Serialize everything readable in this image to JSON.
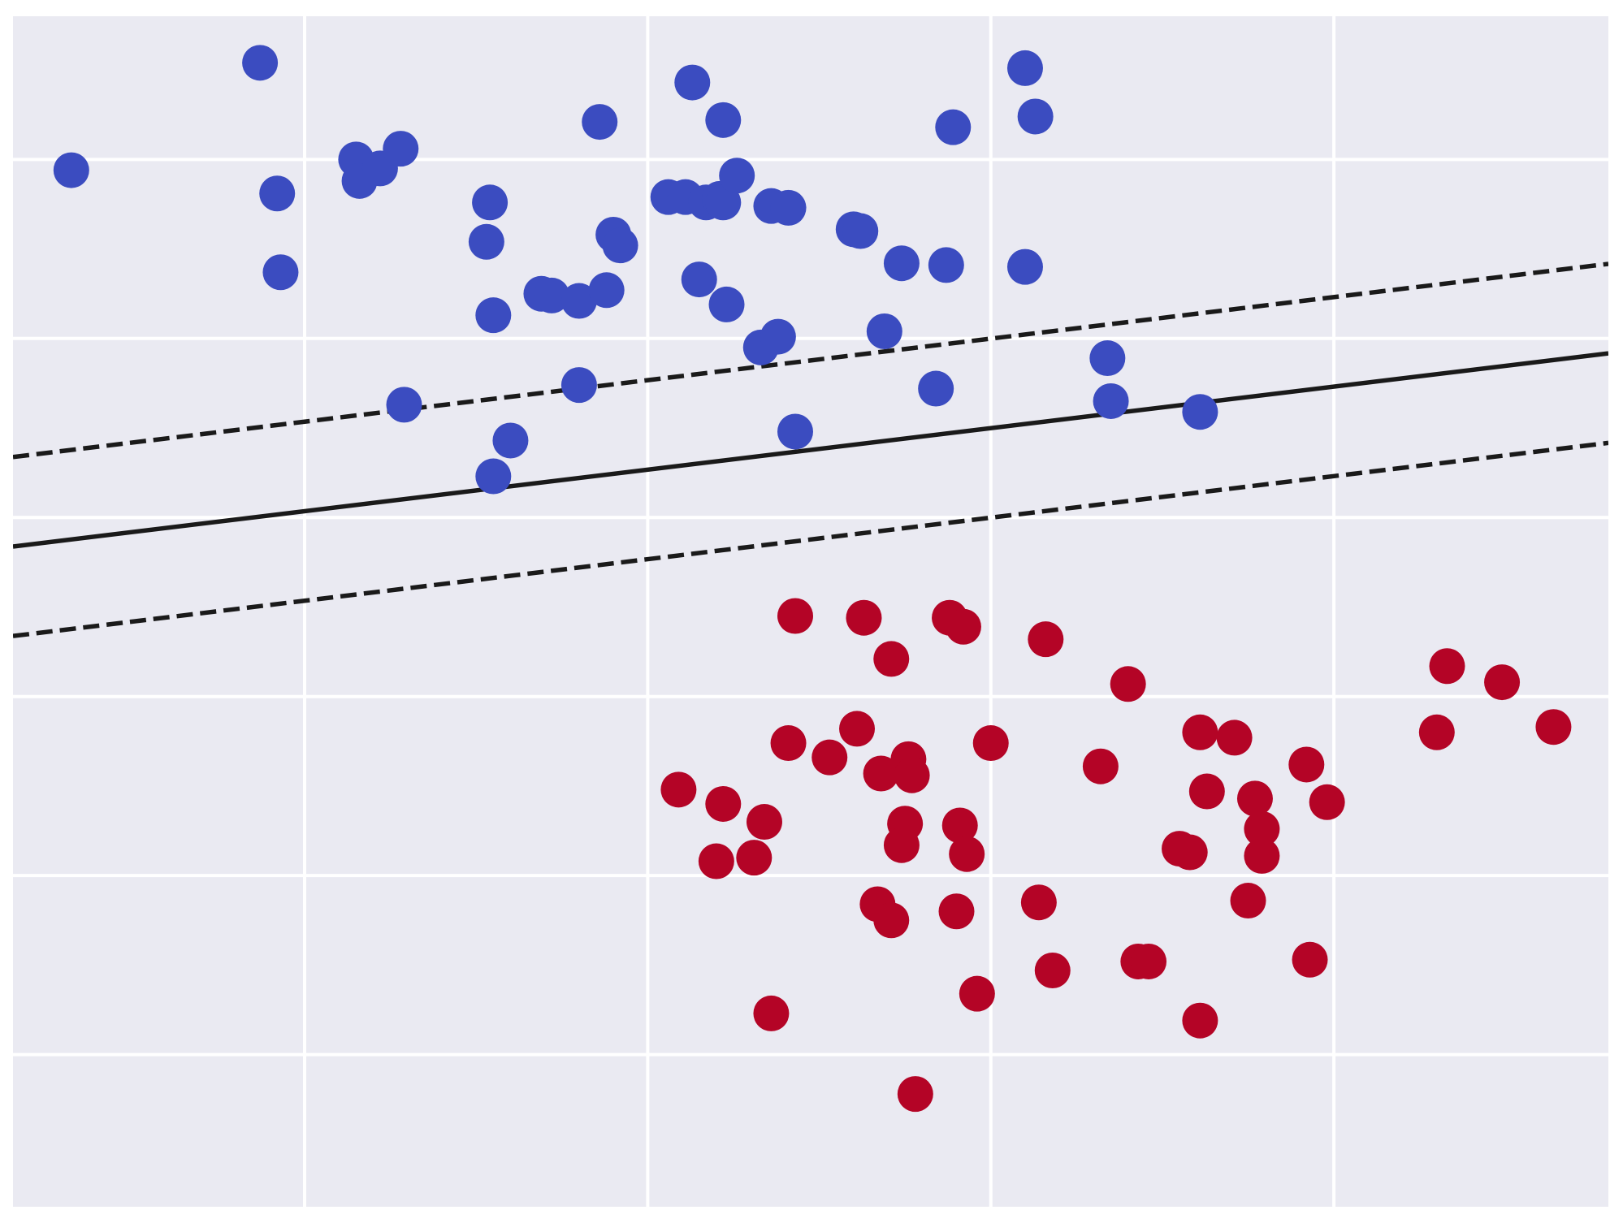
{
  "chart_data": {
    "type": "scatter",
    "title": "",
    "xlabel": "",
    "ylabel": "",
    "xlim": [
      -1.0,
      3.65
    ],
    "ylim": [
      -0.6,
      6.05
    ],
    "xticks": [
      -0.15,
      0.85,
      1.85,
      2.85
    ],
    "yticks": [
      0.25,
      1.25,
      2.25,
      3.25,
      4.25,
      5.25
    ],
    "grid": true,
    "legend": "none",
    "colors": {
      "background": "#EAEAF2",
      "grid": "#FFFFFF",
      "class_0": "#3B4CC0",
      "class_1": "#B40426",
      "lines": "#1A1A1A"
    },
    "decision_boundary": {
      "slope": 0.232,
      "intercept": 3.32
    },
    "margin_lines": [
      {
        "slope": 0.232,
        "intercept": 3.82,
        "style": "dashed"
      },
      {
        "slope": 0.232,
        "intercept": 2.82,
        "style": "dashed"
      }
    ],
    "series": [
      {
        "class": 0,
        "color": "#3B4CC0",
        "points": [
          [
            -0.83,
            5.19
          ],
          [
            -0.28,
            5.79
          ],
          [
            -0.23,
            5.06
          ],
          [
            -0.22,
            4.62
          ],
          [
            0.0,
            5.25
          ],
          [
            0.01,
            5.13
          ],
          [
            0.07,
            5.2
          ],
          [
            0.13,
            5.31
          ],
          [
            0.39,
            5.01
          ],
          [
            0.38,
            4.79
          ],
          [
            0.4,
            4.38
          ],
          [
            0.14,
            3.88
          ],
          [
            0.45,
            3.68
          ],
          [
            0.4,
            3.48
          ],
          [
            0.54,
            4.5
          ],
          [
            0.57,
            4.49
          ],
          [
            0.65,
            4.46
          ],
          [
            0.73,
            4.52
          ],
          [
            0.65,
            3.99
          ],
          [
            0.71,
            5.46
          ],
          [
            0.75,
            4.83
          ],
          [
            0.77,
            4.77
          ],
          [
            0.91,
            5.04
          ],
          [
            0.96,
            5.04
          ],
          [
            1.02,
            5.01
          ],
          [
            1.0,
            4.58
          ],
          [
            1.06,
            5.03
          ],
          [
            1.07,
            5.01
          ],
          [
            0.98,
            5.68
          ],
          [
            1.07,
            5.47
          ],
          [
            1.11,
            5.16
          ],
          [
            1.08,
            4.44
          ],
          [
            1.21,
            4.99
          ],
          [
            1.26,
            4.98
          ],
          [
            1.18,
            4.2
          ],
          [
            1.23,
            4.26
          ],
          [
            1.28,
            3.73
          ],
          [
            1.45,
            4.86
          ],
          [
            1.47,
            4.85
          ],
          [
            1.59,
            4.67
          ],
          [
            1.54,
            4.29
          ],
          [
            1.74,
            5.43
          ],
          [
            1.72,
            4.66
          ],
          [
            1.69,
            3.97
          ],
          [
            1.95,
            5.76
          ],
          [
            1.98,
            5.49
          ],
          [
            1.95,
            4.65
          ],
          [
            2.19,
            4.14
          ],
          [
            2.2,
            3.9
          ],
          [
            2.46,
            3.84
          ]
        ]
      },
      {
        "class": 1,
        "color": "#B40426",
        "points": [
          [
            1.28,
            2.7
          ],
          [
            1.48,
            2.69
          ],
          [
            1.73,
            2.69
          ],
          [
            1.77,
            2.64
          ],
          [
            2.01,
            2.57
          ],
          [
            1.56,
            2.46
          ],
          [
            2.25,
            2.32
          ],
          [
            1.46,
            2.07
          ],
          [
            1.26,
            1.99
          ],
          [
            1.38,
            1.91
          ],
          [
            1.61,
            1.9
          ],
          [
            1.53,
            1.82
          ],
          [
            1.62,
            1.81
          ],
          [
            0.94,
            1.73
          ],
          [
            1.07,
            1.65
          ],
          [
            1.19,
            1.55
          ],
          [
            1.85,
            1.99
          ],
          [
            2.17,
            1.86
          ],
          [
            2.46,
            2.05
          ],
          [
            2.56,
            2.02
          ],
          [
            2.48,
            1.72
          ],
          [
            2.62,
            1.68
          ],
          [
            2.77,
            1.87
          ],
          [
            2.83,
            1.66
          ],
          [
            2.64,
            1.51
          ],
          [
            2.64,
            1.36
          ],
          [
            1.6,
            1.54
          ],
          [
            1.59,
            1.42
          ],
          [
            1.76,
            1.53
          ],
          [
            1.78,
            1.37
          ],
          [
            2.4,
            1.4
          ],
          [
            2.43,
            1.38
          ],
          [
            1.05,
            1.33
          ],
          [
            1.16,
            1.35
          ],
          [
            1.52,
            1.09
          ],
          [
            1.56,
            1.0
          ],
          [
            1.75,
            1.05
          ],
          [
            1.99,
            1.1
          ],
          [
            2.6,
            1.11
          ],
          [
            2.28,
            0.77
          ],
          [
            2.31,
            0.77
          ],
          [
            2.78,
            0.78
          ],
          [
            2.03,
            0.72
          ],
          [
            1.81,
            0.59
          ],
          [
            1.21,
            0.48
          ],
          [
            2.46,
            0.44
          ],
          [
            1.63,
            0.03
          ],
          [
            3.18,
            2.42
          ],
          [
            3.34,
            2.33
          ],
          [
            3.15,
            2.05
          ],
          [
            3.49,
            2.08
          ]
        ]
      }
    ]
  }
}
